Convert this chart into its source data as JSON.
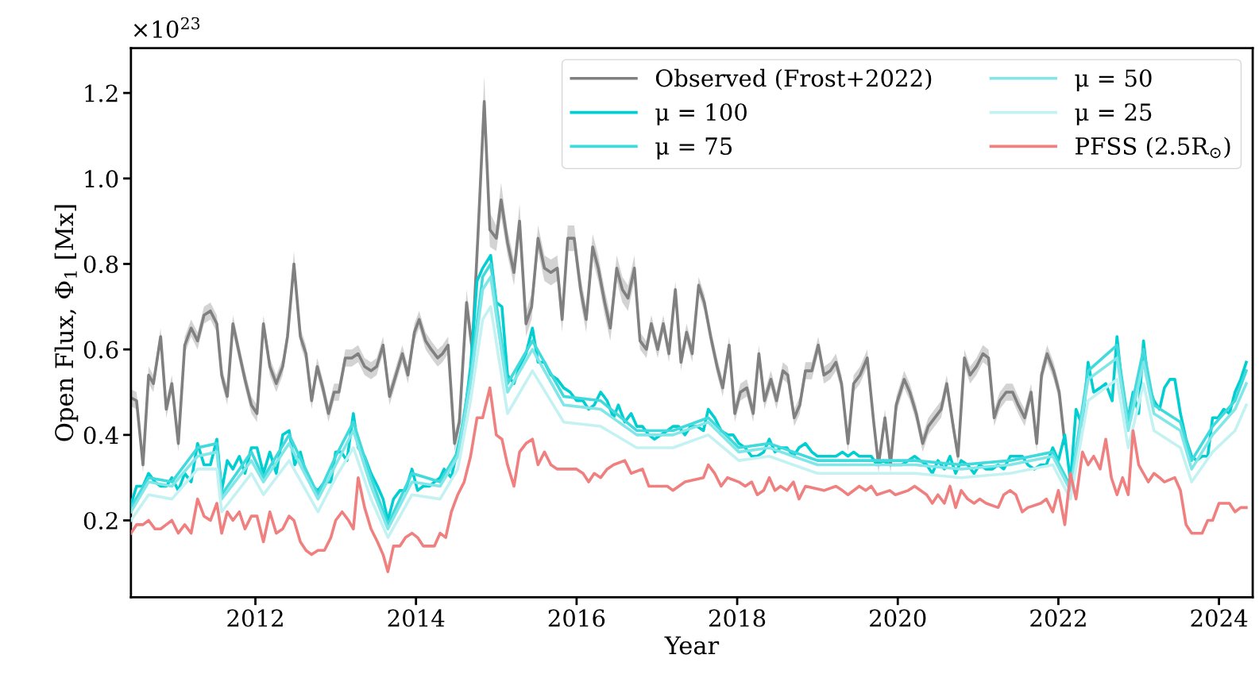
{
  "chart_data": {
    "type": "line",
    "xlabel": "Year",
    "ylabel": "Open Flux, Φ$_{1}$ [Mx]",
    "annotations": [
      "×10$^{23}$"
    ],
    "xlim": [
      2010.45,
      2024.42
    ],
    "ylim": [
      0.02,
      1.305
    ],
    "xticks": [
      2012,
      2014,
      2016,
      2018,
      2020,
      2022,
      2024
    ],
    "yticks": [
      0.2,
      0.4,
      0.6,
      0.8,
      {
        "value": 1,
        "label": "1.0"
      },
      1.2
    ],
    "grid": false,
    "legend": "top right",
    "line_style": "solid",
    "marker": "none",
    "series": [
      {
        "name": "Observed (Frost+2022)",
        "color": "#808080",
        "x": [
          2010.45,
          2010.52,
          2010.6,
          2010.67,
          2010.73,
          2010.82,
          2010.89,
          2010.96,
          2011.04,
          2011.12,
          2011.2,
          2011.28,
          2011.36,
          2011.44,
          2011.52,
          2011.58,
          2011.65,
          2011.72,
          2011.8,
          2011.87,
          2011.95,
          2012.02,
          2012.1,
          2012.18,
          2012.26,
          2012.34,
          2012.4,
          2012.48,
          2012.56,
          2012.63,
          2012.7,
          2012.77,
          2012.84,
          2012.91,
          2012.98,
          2013.04,
          2013.12,
          2013.2,
          2013.28,
          2013.36,
          2013.44,
          2013.51,
          2013.59,
          2013.67,
          2013.75,
          2013.83,
          2013.9,
          2013.98,
          2014.04,
          2014.12,
          2014.19,
          2014.27,
          2014.33,
          2014.4,
          2014.48,
          2014.54,
          2014.63,
          2014.7,
          2014.77,
          2014.85,
          2014.92,
          2015.0,
          2015.06,
          2015.14,
          2015.22,
          2015.29,
          2015.37,
          2015.44,
          2015.52,
          2015.6,
          2015.68,
          2015.76,
          2015.82,
          2015.89,
          2015.97,
          2016.05,
          2016.12,
          2016.2,
          2016.27,
          2016.35,
          2016.42,
          2016.5,
          2016.57,
          2016.64,
          2016.72,
          2016.79,
          2016.87,
          2016.93,
          2017.01,
          2017.08,
          2017.15,
          2017.23,
          2017.3,
          2017.37,
          2017.44,
          2017.52,
          2017.59,
          2017.67,
          2017.75,
          2017.82,
          2017.9,
          2017.97,
          2018.04,
          2018.12,
          2018.2,
          2018.27,
          2018.34,
          2018.42,
          2018.49,
          2018.57,
          2018.63,
          2018.71,
          2018.78,
          2018.85,
          2018.93,
          2019.01,
          2019.08,
          2019.16,
          2019.23,
          2019.3,
          2019.38,
          2019.45,
          2019.53,
          2019.62,
          2019.7,
          2019.76,
          2019.84,
          2019.91,
          2019.98,
          2020.08,
          2020.15,
          2020.23,
          2020.31,
          2020.38,
          2020.46,
          2020.54,
          2020.61,
          2020.69,
          2020.75,
          2020.83,
          2020.9,
          2020.98,
          2021.06,
          2021.13,
          2021.2,
          2021.27,
          2021.35,
          2021.43,
          2021.5,
          2021.58,
          2021.66,
          2021.73,
          2021.79,
          2021.86,
          2021.94,
          2022.01,
          2022.08
        ],
        "values": [
          0.487,
          0.48,
          0.33,
          0.54,
          0.52,
          0.63,
          0.46,
          0.52,
          0.38,
          0.61,
          0.65,
          0.62,
          0.68,
          0.69,
          0.66,
          0.54,
          0.49,
          0.66,
          0.59,
          0.53,
          0.47,
          0.45,
          0.66,
          0.56,
          0.52,
          0.56,
          0.63,
          0.8,
          0.63,
          0.59,
          0.48,
          0.56,
          0.51,
          0.45,
          0.5,
          0.5,
          0.58,
          0.58,
          0.59,
          0.56,
          0.55,
          0.56,
          0.61,
          0.49,
          0.54,
          0.59,
          0.54,
          0.64,
          0.67,
          0.62,
          0.6,
          0.58,
          0.59,
          0.61,
          0.38,
          0.43,
          0.71,
          0.6,
          0.86,
          1.18,
          0.88,
          0.86,
          0.95,
          0.85,
          0.78,
          0.9,
          0.66,
          0.7,
          0.86,
          0.79,
          0.78,
          0.79,
          0.67,
          0.86,
          0.86,
          0.74,
          0.67,
          0.84,
          0.79,
          0.71,
          0.65,
          0.79,
          0.74,
          0.72,
          0.79,
          0.62,
          0.6,
          0.66,
          0.6,
          0.66,
          0.59,
          0.74,
          0.57,
          0.64,
          0.59,
          0.75,
          0.71,
          0.63,
          0.56,
          0.51,
          0.61,
          0.45,
          0.5,
          0.51,
          0.45,
          0.59,
          0.48,
          0.53,
          0.48,
          0.55,
          0.54,
          0.44,
          0.47,
          0.55,
          0.55,
          0.61,
          0.54,
          0.55,
          0.57,
          0.52,
          0.38,
          0.52,
          0.54,
          0.58,
          0.43,
          0.33,
          0.44,
          0.33,
          0.47,
          0.53,
          0.5,
          0.45,
          0.38,
          0.42,
          0.44,
          0.46,
          0.52,
          0.42,
          0.35,
          0.58,
          0.54,
          0.56,
          0.59,
          0.58,
          0.44,
          0.48,
          0.5,
          0.5,
          0.47,
          0.44,
          0.5,
          0.38,
          0.54,
          0.59,
          0.55,
          0.5,
          0.38
        ],
        "lower": [
          0.467,
          0.46,
          0.31,
          0.52,
          0.5,
          0.61,
          0.44,
          0.5,
          0.36,
          0.59,
          0.63,
          0.6,
          0.66,
          0.67,
          0.64,
          0.52,
          0.47,
          0.64,
          0.57,
          0.51,
          0.45,
          0.43,
          0.64,
          0.54,
          0.5,
          0.54,
          0.61,
          0.77,
          0.61,
          0.57,
          0.46,
          0.54,
          0.49,
          0.43,
          0.48,
          0.48,
          0.56,
          0.56,
          0.57,
          0.54,
          0.53,
          0.54,
          0.59,
          0.47,
          0.52,
          0.57,
          0.52,
          0.62,
          0.65,
          0.6,
          0.58,
          0.56,
          0.57,
          0.59,
          0.36,
          0.41,
          0.68,
          0.57,
          0.82,
          1.12,
          0.84,
          0.83,
          0.91,
          0.82,
          0.75,
          0.86,
          0.63,
          0.67,
          0.83,
          0.76,
          0.75,
          0.76,
          0.64,
          0.83,
          0.83,
          0.71,
          0.64,
          0.81,
          0.76,
          0.68,
          0.62,
          0.76,
          0.71,
          0.69,
          0.76,
          0.6,
          0.58,
          0.64,
          0.58,
          0.64,
          0.57,
          0.72,
          0.55,
          0.62,
          0.57,
          0.73,
          0.69,
          0.61,
          0.54,
          0.49,
          0.59,
          0.43,
          0.48,
          0.49,
          0.43,
          0.57,
          0.46,
          0.51,
          0.46,
          0.53,
          0.52,
          0.42,
          0.45,
          0.53,
          0.53,
          0.59,
          0.52,
          0.53,
          0.55,
          0.5,
          0.36,
          0.5,
          0.52,
          0.56,
          0.41,
          0.31,
          0.42,
          0.31,
          0.45,
          0.51,
          0.48,
          0.43,
          0.36,
          0.4,
          0.42,
          0.44,
          0.5,
          0.4,
          0.33,
          0.56,
          0.52,
          0.54,
          0.57,
          0.56,
          0.42,
          0.46,
          0.48,
          0.48,
          0.45,
          0.42,
          0.48,
          0.36,
          0.52,
          0.57,
          0.53,
          0.48,
          0.36
        ],
        "upper": [
          0.507,
          0.5,
          0.35,
          0.56,
          0.54,
          0.65,
          0.48,
          0.54,
          0.4,
          0.63,
          0.67,
          0.64,
          0.7,
          0.71,
          0.68,
          0.56,
          0.51,
          0.68,
          0.61,
          0.55,
          0.49,
          0.47,
          0.68,
          0.58,
          0.54,
          0.58,
          0.65,
          0.83,
          0.65,
          0.61,
          0.5,
          0.58,
          0.53,
          0.47,
          0.52,
          0.52,
          0.6,
          0.6,
          0.61,
          0.58,
          0.57,
          0.58,
          0.63,
          0.51,
          0.56,
          0.61,
          0.56,
          0.66,
          0.69,
          0.64,
          0.62,
          0.6,
          0.61,
          0.63,
          0.4,
          0.45,
          0.74,
          0.63,
          0.9,
          1.24,
          0.92,
          0.89,
          0.99,
          0.88,
          0.81,
          0.94,
          0.69,
          0.73,
          0.89,
          0.82,
          0.81,
          0.82,
          0.7,
          0.89,
          0.89,
          0.77,
          0.7,
          0.87,
          0.82,
          0.74,
          0.68,
          0.82,
          0.77,
          0.75,
          0.82,
          0.64,
          0.62,
          0.68,
          0.62,
          0.68,
          0.61,
          0.76,
          0.59,
          0.66,
          0.61,
          0.77,
          0.73,
          0.65,
          0.58,
          0.53,
          0.63,
          0.47,
          0.52,
          0.53,
          0.47,
          0.61,
          0.5,
          0.55,
          0.5,
          0.57,
          0.56,
          0.46,
          0.49,
          0.57,
          0.57,
          0.63,
          0.56,
          0.57,
          0.59,
          0.54,
          0.4,
          0.54,
          0.56,
          0.6,
          0.45,
          0.35,
          0.46,
          0.35,
          0.49,
          0.55,
          0.52,
          0.47,
          0.4,
          0.44,
          0.46,
          0.48,
          0.54,
          0.44,
          0.37,
          0.6,
          0.56,
          0.58,
          0.61,
          0.6,
          0.46,
          0.5,
          0.52,
          0.52,
          0.49,
          0.46,
          0.52,
          0.4,
          0.56,
          0.61,
          0.57,
          0.52,
          0.4
        ]
      },
      {
        "name": "μ = 100",
        "color": "#00ced1",
        "x": [
          2010.45,
          2010.52,
          2010.6,
          2010.67,
          2010.75,
          2010.82,
          2010.89,
          2010.96,
          2011.04,
          2011.12,
          2011.2,
          2011.28,
          2011.36,
          2011.44,
          2011.52,
          2011.58,
          2011.65,
          2011.72,
          2011.8,
          2011.87,
          2011.95,
          2012.02,
          2012.1,
          2012.18,
          2012.26,
          2012.34,
          2012.42,
          2012.49,
          2012.56,
          2012.63,
          2012.7,
          2012.78,
          2012.86,
          2012.94,
          2013.0,
          2013.07,
          2013.14,
          2013.22,
          2013.28,
          2013.36,
          2013.44,
          2013.52,
          2013.59,
          2013.65,
          2013.72,
          2013.8,
          2013.87,
          2013.95,
          2014.02,
          2014.09,
          2014.17,
          2014.23,
          2014.3,
          2014.35,
          2014.44,
          2014.52,
          2014.6,
          2014.68,
          2014.76,
          2014.83,
          2014.93,
          2015.0,
          2015.07,
          2015.14,
          2015.22,
          2015.29,
          2015.37,
          2015.45,
          2015.52,
          2015.6,
          2015.68,
          2015.76,
          2015.84,
          2015.92,
          2016.0,
          2016.08,
          2016.15,
          2016.22,
          2016.3,
          2016.38,
          2016.46,
          2016.52,
          2016.6,
          2016.68,
          2016.75,
          2016.82,
          2016.9,
          2016.97,
          2017.05,
          2017.13,
          2017.2,
          2017.27,
          2017.35,
          2017.42,
          2017.5,
          2017.58,
          2017.64,
          2017.72,
          2017.8,
          2017.88,
          2017.95,
          2018.02,
          2018.1,
          2018.18,
          2018.25,
          2018.33,
          2018.4,
          2018.47,
          2018.54,
          2018.62,
          2018.7,
          2018.77,
          2018.85,
          2018.93,
          2019.0,
          2019.08,
          2019.16,
          2019.23,
          2019.31,
          2019.38,
          2019.45,
          2019.52,
          2019.6,
          2019.67,
          2019.74,
          2019.82,
          2019.9,
          2019.97,
          2020.05,
          2020.13,
          2020.21,
          2020.28,
          2020.36,
          2020.43,
          2020.5,
          2020.58,
          2020.65,
          2020.72,
          2020.79,
          2020.87,
          2020.95,
          2021.02,
          2021.1,
          2021.18,
          2021.25,
          2021.32,
          2021.4,
          2021.47,
          2021.55,
          2021.62,
          2021.7,
          2021.78,
          2021.85,
          2021.93,
          2022.0,
          2022.08,
          2022.15,
          2022.22,
          2022.3,
          2022.37,
          2022.44,
          2022.52,
          2022.59,
          2022.67,
          2022.73,
          2022.8,
          2022.87,
          2022.93,
          2023.0,
          2023.06,
          2023.12,
          2023.19,
          2023.26,
          2023.32,
          2023.39,
          2023.45,
          2023.52,
          2023.59,
          2023.66,
          2023.72,
          2023.79,
          2023.86,
          2023.92,
          2023.99,
          2024.06,
          2024.13,
          2024.2,
          2024.27,
          2024.34
        ],
        "values": [
          0.237,
          0.28,
          0.28,
          0.31,
          0.29,
          0.28,
          0.28,
          0.3,
          0.27,
          0.31,
          0.29,
          0.38,
          0.33,
          0.33,
          0.39,
          0.27,
          0.34,
          0.32,
          0.35,
          0.31,
          0.37,
          0.37,
          0.31,
          0.36,
          0.31,
          0.4,
          0.41,
          0.33,
          0.36,
          0.31,
          0.28,
          0.27,
          0.29,
          0.29,
          0.36,
          0.36,
          0.34,
          0.45,
          0.37,
          0.35,
          0.31,
          0.28,
          0.25,
          0.2,
          0.25,
          0.27,
          0.27,
          0.32,
          0.27,
          0.28,
          0.28,
          0.29,
          0.3,
          0.32,
          0.3,
          0.37,
          0.44,
          0.56,
          0.76,
          0.79,
          0.82,
          0.71,
          0.7,
          0.54,
          0.52,
          0.56,
          0.59,
          0.65,
          0.57,
          0.57,
          0.54,
          0.53,
          0.51,
          0.5,
          0.48,
          0.48,
          0.46,
          0.47,
          0.5,
          0.48,
          0.44,
          0.47,
          0.43,
          0.45,
          0.42,
          0.42,
          0.4,
          0.39,
          0.4,
          0.41,
          0.42,
          0.42,
          0.4,
          0.42,
          0.42,
          0.41,
          0.46,
          0.44,
          0.41,
          0.4,
          0.4,
          0.38,
          0.37,
          0.35,
          0.35,
          0.36,
          0.39,
          0.36,
          0.37,
          0.37,
          0.35,
          0.37,
          0.38,
          0.36,
          0.35,
          0.35,
          0.35,
          0.35,
          0.36,
          0.35,
          0.36,
          0.35,
          0.35,
          0.35,
          0.33,
          0.34,
          0.33,
          0.33,
          0.33,
          0.34,
          0.35,
          0.34,
          0.33,
          0.31,
          0.34,
          0.32,
          0.35,
          0.31,
          0.34,
          0.33,
          0.31,
          0.33,
          0.32,
          0.32,
          0.33,
          0.32,
          0.35,
          0.35,
          0.35,
          0.33,
          0.32,
          0.33,
          0.33,
          0.37,
          0.34,
          0.4,
          0.29,
          0.46,
          0.42,
          0.57,
          0.5,
          0.51,
          0.52,
          0.48,
          0.63,
          0.5,
          0.44,
          0.5,
          0.45,
          0.62,
          0.52,
          0.48,
          0.46,
          0.51,
          0.53,
          0.53,
          0.45,
          0.39,
          0.35,
          0.34,
          0.35,
          0.35,
          0.44,
          0.44,
          0.46,
          0.45,
          0.5,
          0.53,
          0.57
        ]
      },
      {
        "name": "μ = 75",
        "color": "#40dadd",
        "x": [
          2010.45,
          2010.67,
          2010.96,
          2011.28,
          2011.52,
          2011.58,
          2011.95,
          2012.1,
          2012.42,
          2012.78,
          2013.0,
          2013.22,
          2013.44,
          2013.65,
          2013.95,
          2014.3,
          2014.52,
          2014.68,
          2014.83,
          2014.93,
          2015.14,
          2015.45,
          2015.84,
          2016.3,
          2016.75,
          2017.2,
          2017.64,
          2018.02,
          2018.4,
          2019.0,
          2019.67,
          2020.21,
          2020.79,
          2021.4,
          2021.93,
          2022.15,
          2022.37,
          2022.73,
          2022.87,
          2023.06,
          2023.19,
          2023.52,
          2023.66,
          2023.92,
          2024.2,
          2024.34
        ],
        "values": [
          0.23,
          0.3,
          0.29,
          0.37,
          0.38,
          0.26,
          0.36,
          0.3,
          0.4,
          0.26,
          0.35,
          0.43,
          0.3,
          0.19,
          0.31,
          0.29,
          0.36,
          0.54,
          0.77,
          0.8,
          0.52,
          0.62,
          0.49,
          0.48,
          0.41,
          0.41,
          0.44,
          0.37,
          0.38,
          0.34,
          0.34,
          0.34,
          0.33,
          0.34,
          0.36,
          0.28,
          0.55,
          0.61,
          0.43,
          0.6,
          0.47,
          0.43,
          0.34,
          0.42,
          0.48,
          0.55
        ]
      },
      {
        "name": "μ = 50",
        "color": "#80e6e8",
        "x": [
          2010.45,
          2010.67,
          2010.96,
          2011.28,
          2011.52,
          2011.58,
          2011.95,
          2012.1,
          2012.42,
          2012.78,
          2013.0,
          2013.22,
          2013.44,
          2013.65,
          2013.95,
          2014.3,
          2014.52,
          2014.68,
          2014.83,
          2014.93,
          2015.14,
          2015.45,
          2015.84,
          2016.3,
          2016.75,
          2017.2,
          2017.64,
          2018.02,
          2018.4,
          2019.0,
          2019.67,
          2020.21,
          2020.79,
          2021.4,
          2021.93,
          2022.15,
          2022.37,
          2022.73,
          2022.87,
          2023.06,
          2023.19,
          2023.52,
          2023.66,
          2023.92,
          2024.2,
          2024.34
        ],
        "values": [
          0.22,
          0.29,
          0.28,
          0.35,
          0.36,
          0.25,
          0.34,
          0.29,
          0.38,
          0.25,
          0.33,
          0.41,
          0.28,
          0.18,
          0.29,
          0.28,
          0.35,
          0.52,
          0.74,
          0.77,
          0.5,
          0.6,
          0.47,
          0.46,
          0.4,
          0.4,
          0.43,
          0.36,
          0.37,
          0.33,
          0.33,
          0.33,
          0.32,
          0.33,
          0.35,
          0.27,
          0.53,
          0.58,
          0.41,
          0.57,
          0.45,
          0.41,
          0.32,
          0.4,
          0.46,
          0.52
        ]
      },
      {
        "name": "μ = 25",
        "color": "#c4f2f3",
        "x": [
          2010.45,
          2010.67,
          2010.96,
          2011.28,
          2011.52,
          2011.58,
          2011.95,
          2012.1,
          2012.42,
          2012.78,
          2013.0,
          2013.22,
          2013.44,
          2013.65,
          2013.95,
          2014.3,
          2014.52,
          2014.68,
          2014.83,
          2014.93,
          2015.14,
          2015.45,
          2015.84,
          2016.3,
          2016.75,
          2017.2,
          2017.64,
          2018.02,
          2018.4,
          2019.0,
          2019.67,
          2020.21,
          2020.79,
          2021.4,
          2021.93,
          2022.15,
          2022.37,
          2022.73,
          2022.87,
          2023.06,
          2023.19,
          2023.52,
          2023.66,
          2023.92,
          2024.2,
          2024.34
        ],
        "values": [
          0.2,
          0.26,
          0.25,
          0.32,
          0.32,
          0.22,
          0.31,
          0.26,
          0.34,
          0.22,
          0.3,
          0.37,
          0.25,
          0.16,
          0.26,
          0.25,
          0.32,
          0.48,
          0.67,
          0.7,
          0.45,
          0.55,
          0.43,
          0.42,
          0.37,
          0.37,
          0.4,
          0.34,
          0.35,
          0.31,
          0.31,
          0.31,
          0.3,
          0.31,
          0.33,
          0.25,
          0.48,
          0.53,
          0.37,
          0.52,
          0.41,
          0.37,
          0.29,
          0.36,
          0.41,
          0.47
        ]
      },
      {
        "name": "PFSS (2.5R$_{⊙}$)",
        "color": "#f08080",
        "x": [
          2010.45,
          2010.52,
          2010.6,
          2010.67,
          2010.75,
          2010.82,
          2010.89,
          2010.96,
          2011.04,
          2011.12,
          2011.2,
          2011.28,
          2011.36,
          2011.44,
          2011.52,
          2011.58,
          2011.65,
          2011.72,
          2011.8,
          2011.87,
          2011.95,
          2012.02,
          2012.1,
          2012.18,
          2012.26,
          2012.34,
          2012.42,
          2012.48,
          2012.56,
          2012.63,
          2012.7,
          2012.78,
          2012.86,
          2012.94,
          2013.0,
          2013.08,
          2013.16,
          2013.22,
          2013.28,
          2013.36,
          2013.44,
          2013.52,
          2013.59,
          2013.65,
          2013.72,
          2013.8,
          2013.87,
          2013.95,
          2014.02,
          2014.09,
          2014.17,
          2014.23,
          2014.3,
          2014.37,
          2014.44,
          2014.52,
          2014.6,
          2014.68,
          2014.76,
          2014.83,
          2014.92,
          2015.0,
          2015.07,
          2015.14,
          2015.22,
          2015.29,
          2015.37,
          2015.45,
          2015.52,
          2015.6,
          2015.68,
          2015.76,
          2016.0,
          2016.08,
          2016.15,
          2016.22,
          2016.3,
          2016.38,
          2016.46,
          2016.6,
          2016.68,
          2016.82,
          2016.9,
          2017.13,
          2017.2,
          2017.35,
          2017.58,
          2017.64,
          2017.72,
          2017.8,
          2017.88,
          2018.02,
          2018.1,
          2018.18,
          2018.25,
          2018.33,
          2018.4,
          2018.47,
          2018.54,
          2018.62,
          2018.7,
          2018.77,
          2018.85,
          2019.08,
          2019.23,
          2019.31,
          2019.38,
          2019.52,
          2019.6,
          2019.67,
          2019.74,
          2019.9,
          2019.97,
          2020.13,
          2020.21,
          2020.36,
          2020.43,
          2020.5,
          2020.58,
          2020.65,
          2020.72,
          2020.79,
          2020.87,
          2020.95,
          2021.02,
          2021.1,
          2021.25,
          2021.32,
          2021.4,
          2021.47,
          2021.55,
          2021.62,
          2021.78,
          2021.85,
          2021.93,
          2022.0,
          2022.08,
          2022.15,
          2022.22,
          2022.3,
          2022.37,
          2022.44,
          2022.52,
          2022.59,
          2022.66,
          2022.73,
          2022.8,
          2022.87,
          2022.93,
          2023.0,
          2023.12,
          2023.19,
          2023.26,
          2023.32,
          2023.45,
          2023.52,
          2023.59,
          2023.66,
          2023.72,
          2023.79,
          2023.86,
          2023.92,
          2024.0,
          2024.13,
          2024.2,
          2024.27,
          2024.34
        ],
        "values": [
          0.17,
          0.19,
          0.19,
          0.2,
          0.18,
          0.18,
          0.19,
          0.2,
          0.17,
          0.19,
          0.17,
          0.25,
          0.21,
          0.2,
          0.24,
          0.17,
          0.22,
          0.2,
          0.22,
          0.18,
          0.21,
          0.21,
          0.15,
          0.22,
          0.17,
          0.18,
          0.21,
          0.2,
          0.15,
          0.13,
          0.12,
          0.13,
          0.13,
          0.16,
          0.2,
          0.22,
          0.2,
          0.18,
          0.3,
          0.23,
          0.18,
          0.15,
          0.12,
          0.08,
          0.14,
          0.14,
          0.16,
          0.17,
          0.16,
          0.14,
          0.14,
          0.14,
          0.17,
          0.16,
          0.22,
          0.26,
          0.29,
          0.35,
          0.44,
          0.44,
          0.51,
          0.4,
          0.39,
          0.33,
          0.28,
          0.36,
          0.38,
          0.39,
          0.33,
          0.36,
          0.33,
          0.32,
          0.32,
          0.31,
          0.29,
          0.31,
          0.3,
          0.32,
          0.33,
          0.34,
          0.31,
          0.32,
          0.28,
          0.28,
          0.27,
          0.29,
          0.3,
          0.33,
          0.31,
          0.28,
          0.3,
          0.29,
          0.28,
          0.29,
          0.26,
          0.27,
          0.3,
          0.27,
          0.28,
          0.27,
          0.29,
          0.25,
          0.28,
          0.27,
          0.28,
          0.27,
          0.26,
          0.28,
          0.27,
          0.28,
          0.26,
          0.27,
          0.26,
          0.27,
          0.28,
          0.26,
          0.24,
          0.26,
          0.24,
          0.28,
          0.23,
          0.27,
          0.25,
          0.24,
          0.25,
          0.24,
          0.23,
          0.26,
          0.27,
          0.26,
          0.22,
          0.23,
          0.24,
          0.25,
          0.22,
          0.27,
          0.19,
          0.31,
          0.25,
          0.36,
          0.33,
          0.35,
          0.32,
          0.39,
          0.3,
          0.26,
          0.3,
          0.26,
          0.41,
          0.33,
          0.29,
          0.31,
          0.3,
          0.29,
          0.3,
          0.27,
          0.19,
          0.17,
          0.17,
          0.17,
          0.2,
          0.2,
          0.24,
          0.24,
          0.22,
          0.23,
          0.23
        ]
      }
    ]
  }
}
